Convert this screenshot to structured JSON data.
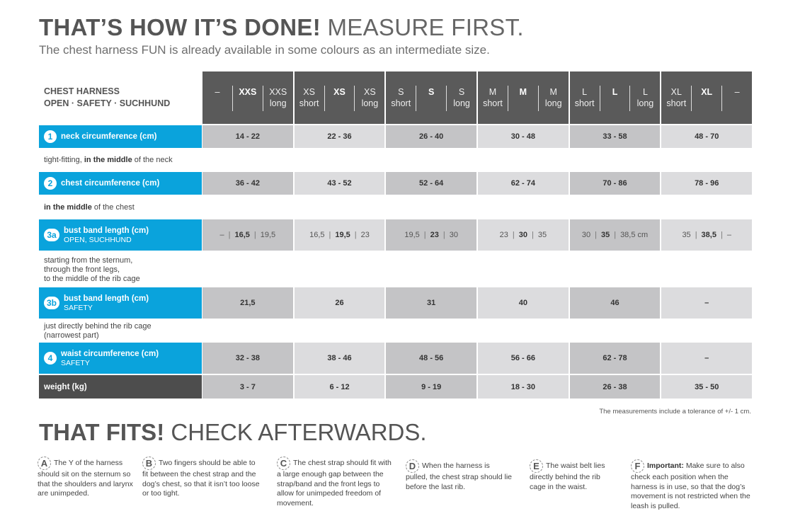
{
  "title_bold": "THAT’S HOW IT’S DONE!",
  "title_light": "MEASURE FIRST.",
  "subtitle": "The chest harness FUN is already available in some colours as an intermediate size.",
  "header": {
    "line1": "CHEST HARNESS",
    "line2": "OPEN · SAFETY · SUCHHUND",
    "groups": [
      [
        {
          "a": "–",
          "b": ""
        },
        {
          "a": "XXS",
          "b": "",
          "bold": true
        },
        {
          "a": "XXS",
          "b": "long"
        }
      ],
      [
        {
          "a": "XS",
          "b": "short"
        },
        {
          "a": "XS",
          "b": "",
          "bold": true
        },
        {
          "a": "XS",
          "b": "long"
        }
      ],
      [
        {
          "a": "S",
          "b": "short"
        },
        {
          "a": "S",
          "b": "",
          "bold": true
        },
        {
          "a": "S",
          "b": "long"
        }
      ],
      [
        {
          "a": "M",
          "b": "short"
        },
        {
          "a": "M",
          "b": "",
          "bold": true
        },
        {
          "a": "M",
          "b": "long"
        }
      ],
      [
        {
          "a": "L",
          "b": "short"
        },
        {
          "a": "L",
          "b": "",
          "bold": true
        },
        {
          "a": "L",
          "b": "long"
        }
      ],
      [
        {
          "a": "XL",
          "b": "short"
        },
        {
          "a": "XL",
          "b": "",
          "bold": true
        },
        {
          "a": "–",
          "b": ""
        }
      ]
    ]
  },
  "rows": {
    "neck": {
      "num": "1",
      "label": "neck circumference (cm)",
      "values": [
        "14 - 22",
        "22 - 36",
        "26 - 40",
        "30 - 48",
        "33 - 58",
        "48 - 70"
      ],
      "note_pre": "tight-fitting, ",
      "note_bold": "in the middle",
      "note_post": " of the neck"
    },
    "chest": {
      "num": "2",
      "label": "chest circumference (cm)",
      "values": [
        "36 - 42",
        "43 - 52",
        "52 - 64",
        "62 - 74",
        "70 - 86",
        "78 - 96"
      ],
      "note_bold": "in the middle",
      "note_post": " of the chest"
    },
    "bust_a": {
      "num": "3a",
      "label": "bust band length (cm)",
      "sub": "OPEN, SUCHHUND",
      "values": [
        [
          "–",
          "16,5",
          "19,5"
        ],
        [
          "16,5",
          "19,5",
          "23"
        ],
        [
          "19,5",
          "23",
          "30"
        ],
        [
          "23",
          "30",
          "35"
        ],
        [
          "30",
          "35",
          "38,5 cm"
        ],
        [
          "35",
          "38,5",
          "–"
        ]
      ],
      "note": [
        "starting from the sternum,",
        "through the front legs,",
        "to the middle of the rib cage"
      ]
    },
    "bust_b": {
      "num": "3b",
      "label": "bust band length (cm)",
      "sub": "SAFETY",
      "values": [
        "21,5",
        "26",
        "31",
        "40",
        "46",
        "–"
      ],
      "note": [
        "just directly behind the rib cage",
        "(narrowest part)"
      ]
    },
    "waist": {
      "num": "4",
      "label": "waist circumference (cm)",
      "sub": "SAFETY",
      "values": [
        "32 - 38",
        "38 - 46",
        "48 - 56",
        "56 - 66",
        "62 - 78",
        "–"
      ]
    },
    "weight": {
      "label": "weight (kg)",
      "values": [
        "3 - 7",
        "6 - 12",
        "9 - 19",
        "18 - 30",
        "26 - 38",
        "35 - 50"
      ]
    }
  },
  "tolerance": "The measurements include a tolerance of +/- 1 cm.",
  "title2_bold": "THAT FITS!",
  "title2_light": "CHECK AFTERWARDS.",
  "tips": [
    {
      "letter": "A",
      "bold": "",
      "text": "The Y of the harness should sit on the sternum so that the shoulders and larynx are unimpeded."
    },
    {
      "letter": "B",
      "bold": "",
      "text": "Two fingers should be able to fit between the chest strap and the dog’s chest, so that it isn’t too loose or too tight."
    },
    {
      "letter": "C",
      "bold": "",
      "text": "The chest strap should fit with a large enough gap between the strap/band and the front legs to allow for unimpeded freedom of movement."
    },
    {
      "letter": "D",
      "bold": "",
      "text": "When the harness is pulled, the chest strap should lie before the last rib."
    },
    {
      "letter": "E",
      "bold": "",
      "text": "The waist belt lies directly behind the rib cage in the waist."
    },
    {
      "letter": "F",
      "bold": "Important:",
      "text": "Make sure to also check each position when the harness is in use, so that the dog’s movement is not restricted when the leash is pulled."
    }
  ]
}
